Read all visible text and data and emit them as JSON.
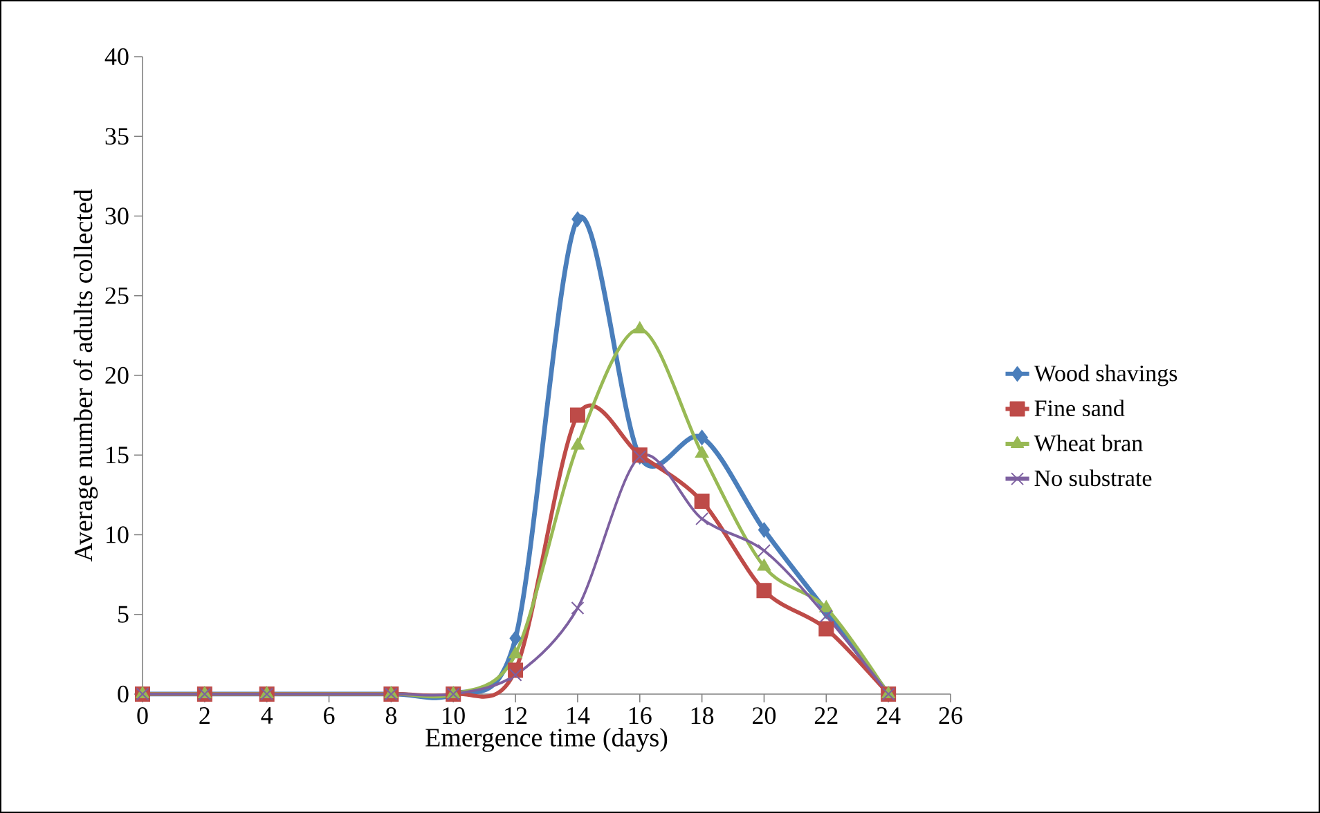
{
  "chart_data": {
    "type": "line",
    "xlabel": "Emergence time (days)",
    "ylabel": "Average number of adults collected",
    "x": [
      0,
      2,
      4,
      8,
      10,
      12,
      14,
      16,
      18,
      20,
      22,
      24
    ],
    "series": [
      {
        "name": "Wood shavings",
        "color": "#4a7ebb",
        "marker": "diamond",
        "values": [
          0,
          0,
          0,
          0,
          0,
          3.5,
          29.8,
          14.9,
          16.1,
          10.3,
          5.2,
          0
        ]
      },
      {
        "name": "Fine sand",
        "color": "#be4b48",
        "marker": "square",
        "values": [
          0,
          0,
          0,
          0,
          0,
          1.5,
          17.5,
          15,
          12.1,
          6.5,
          4.1,
          0
        ]
      },
      {
        "name": "Wheat bran",
        "color": "#98b954",
        "marker": "triangle",
        "values": [
          0,
          0,
          0,
          0,
          0,
          2.5,
          15.6,
          22.9,
          15.1,
          8,
          5.4,
          0
        ]
      },
      {
        "name": "No substrate",
        "color": "#7d60a0",
        "marker": "cross",
        "values": [
          0,
          0,
          0,
          0,
          0,
          1.2,
          5.4,
          14.9,
          11,
          9,
          4.9,
          0
        ]
      }
    ],
    "xlim": [
      0,
      26
    ],
    "xticks": [
      0,
      2,
      4,
      6,
      8,
      10,
      12,
      14,
      16,
      18,
      20,
      22,
      24,
      26
    ],
    "ylim": [
      0,
      40
    ],
    "yticks": [
      0,
      5,
      10,
      15,
      20,
      25,
      30,
      35,
      40
    ],
    "grid": false,
    "legend": "right"
  }
}
